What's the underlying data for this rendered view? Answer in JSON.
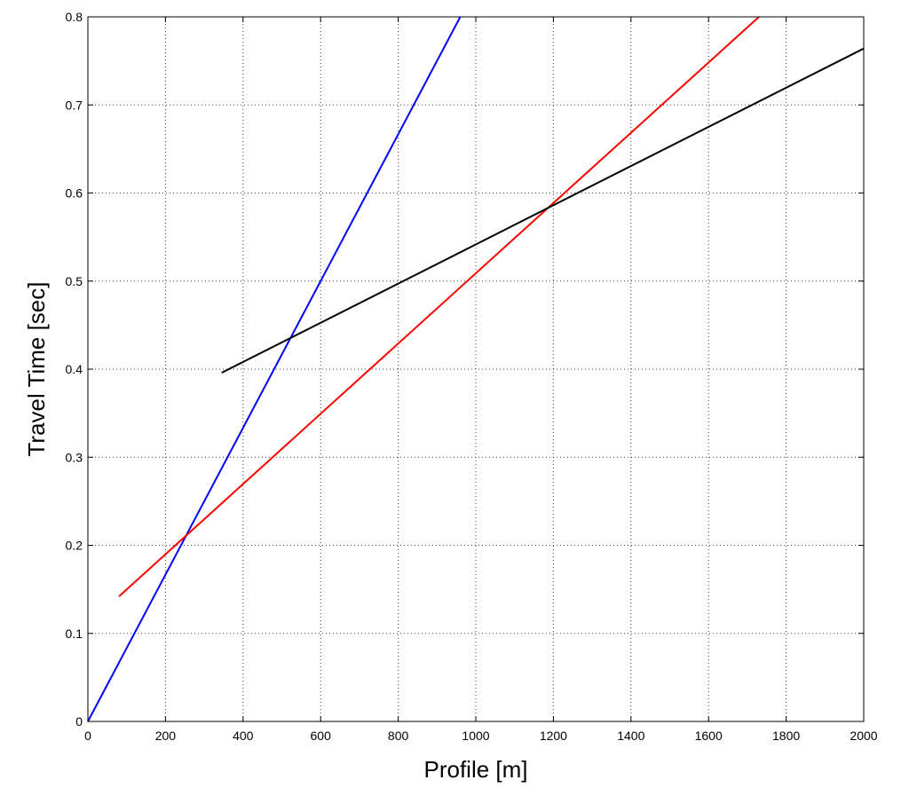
{
  "chart_data": {
    "type": "line",
    "title": "",
    "xlabel": "Profile [m]",
    "ylabel": "Travel Time [sec]",
    "xlim": [
      0,
      2000
    ],
    "ylim": [
      0,
      0.8
    ],
    "xticks": [
      0,
      200,
      400,
      600,
      800,
      1000,
      1200,
      1400,
      1600,
      1800,
      2000
    ],
    "yticks": [
      0,
      0.1,
      0.2,
      0.3,
      0.4,
      0.5,
      0.6,
      0.7,
      0.8
    ],
    "xtick_labels": [
      "0",
      "200",
      "400",
      "600",
      "800",
      "1000",
      "1200",
      "1400",
      "1600",
      "1800",
      "2000"
    ],
    "ytick_labels": [
      "0",
      "0.1",
      "0.2",
      "0.3",
      "0.4",
      "0.5",
      "0.6",
      "0.7",
      "0.8"
    ],
    "grid": true,
    "legend": "none",
    "series": [
      {
        "color": "#0000ff",
        "x": [
          0,
          960
        ],
        "y": [
          0,
          0.8
        ]
      },
      {
        "color": "#ff0000",
        "x": [
          80,
          1730
        ],
        "y": [
          0.142,
          0.8
        ]
      },
      {
        "color": "#000000",
        "x": [
          345,
          2000
        ],
        "y": [
          0.396,
          0.764
        ]
      }
    ]
  }
}
